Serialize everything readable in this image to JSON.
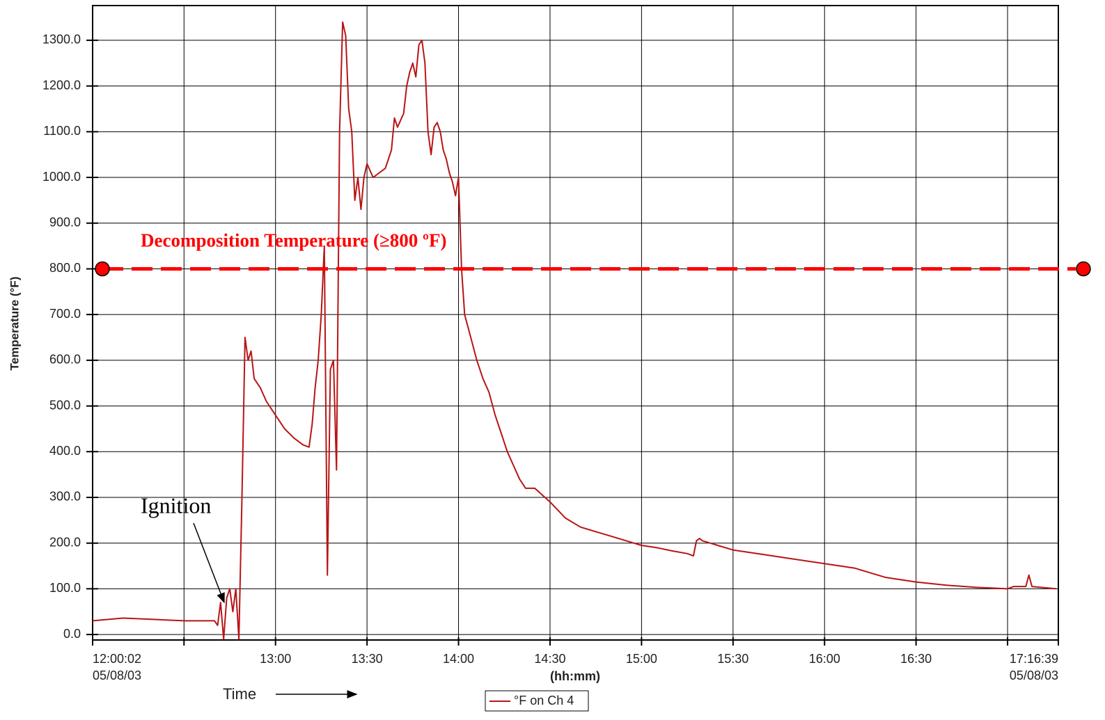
{
  "chart_data": {
    "type": "line",
    "y_label": "Temperature (°F)",
    "x_label": "(hh:mm)",
    "x_note": "Time",
    "annotation": "Ignition",
    "threshold": {
      "value": 800,
      "label": "Decomposition Temperature (≥800 ºF)",
      "color": "#ff0000"
    },
    "ylim": [
      -12,
      1376
    ],
    "yticks": [
      {
        "value": 0,
        "label": "0.0"
      },
      {
        "value": 100,
        "label": "100.0"
      },
      {
        "value": 200,
        "label": "200.0"
      },
      {
        "value": 300,
        "label": "300.0"
      },
      {
        "value": 400,
        "label": "400.0"
      },
      {
        "value": 500,
        "label": "500.0"
      },
      {
        "value": 600,
        "label": "600.0"
      },
      {
        "value": 700,
        "label": "700.0"
      },
      {
        "value": 800,
        "label": "800.0"
      },
      {
        "value": 900,
        "label": "900.0"
      },
      {
        "value": 1000,
        "label": "1000.0"
      },
      {
        "value": 1100,
        "label": "1100.0"
      },
      {
        "value": 1200,
        "label": "1200.0"
      },
      {
        "value": 1300,
        "label": "1300.0"
      }
    ],
    "xlim": [
      "12:00:02",
      "17:16:39"
    ],
    "xticks": [
      {
        "value": "12:00:02",
        "label": "12:00:02",
        "date": "05/08/03"
      },
      {
        "value": "12:30",
        "label": null
      },
      "13:00",
      "13:30",
      "14:00",
      "14:30",
      "15:00",
      "15:30",
      "16:00",
      "16:30",
      {
        "value": "17:00",
        "label": null
      },
      {
        "value": "17:16:39",
        "label": "17:16:39",
        "date": "05/08/03"
      }
    ],
    "grid": true,
    "x": [
      "12:00",
      "12:10",
      "12:20",
      "12:30",
      "12:40",
      "12:41",
      "12:42",
      "12:43",
      "12:44",
      "12:45",
      "12:46",
      "12:47",
      "12:48",
      "12:49",
      "12:50",
      "12:51",
      "12:52",
      "12:53",
      "12:55",
      "12:57",
      "12:59",
      "13:01",
      "13:03",
      "13:06",
      "13:09",
      "13:11",
      "13:12",
      "13:13",
      "13:14",
      "13:15",
      "13:16",
      "13:17",
      "13:18",
      "13:19",
      "13:20",
      "13:21",
      "13:22",
      "13:23",
      "13:24",
      "13:25",
      "13:26",
      "13:27",
      "13:28",
      "13:29",
      "13:30",
      "13:32",
      "13:34",
      "13:36",
      "13:38",
      "13:39",
      "13:40",
      "13:42",
      "13:43",
      "13:44",
      "13:45",
      "13:46",
      "13:47",
      "13:48",
      "13:49",
      "13:50",
      "13:51",
      "13:52",
      "13:53",
      "13:54",
      "13:55",
      "13:56",
      "13:57",
      "13:58",
      "13:59",
      "14:00",
      "14:01",
      "14:02",
      "14:04",
      "14:06",
      "14:08",
      "14:10",
      "14:12",
      "14:14",
      "14:16",
      "14:18",
      "14:20",
      "14:22",
      "14:25",
      "14:30",
      "14:35",
      "14:40",
      "14:45",
      "14:50",
      "14:55",
      "15:00",
      "15:05",
      "15:10",
      "15:15",
      "15:17",
      "15:18",
      "15:19",
      "15:20",
      "15:25",
      "15:30",
      "15:40",
      "15:50",
      "16:00",
      "16:10",
      "16:15",
      "16:20",
      "16:30",
      "16:40",
      "16:50",
      "17:00",
      "17:02",
      "17:06",
      "17:07",
      "17:08",
      "17:16"
    ],
    "series": [
      {
        "name": "°F on Ch 4",
        "color": "#b81414",
        "values": [
          30,
          36,
          33,
          30,
          30,
          20,
          70,
          -10,
          80,
          100,
          50,
          100,
          -10,
          300,
          650,
          600,
          620,
          560,
          540,
          510,
          490,
          470,
          450,
          430,
          415,
          410,
          460,
          540,
          600,
          700,
          850,
          130,
          580,
          600,
          360,
          1100,
          1340,
          1310,
          1150,
          1100,
          950,
          1000,
          930,
          1000,
          1030,
          1000,
          1010,
          1020,
          1060,
          1130,
          1110,
          1140,
          1200,
          1230,
          1250,
          1220,
          1290,
          1300,
          1250,
          1100,
          1050,
          1110,
          1120,
          1100,
          1060,
          1040,
          1010,
          990,
          960,
          1000,
          800,
          700,
          650,
          600,
          560,
          530,
          480,
          440,
          400,
          370,
          340,
          320,
          320,
          290,
          255,
          235,
          225,
          215,
          205,
          195,
          190,
          183,
          177,
          172,
          205,
          210,
          205,
          195,
          185,
          175,
          165,
          155,
          145,
          135,
          125,
          115,
          108,
          103,
          100,
          105,
          105,
          130,
          105,
          100
        ]
      }
    ]
  }
}
